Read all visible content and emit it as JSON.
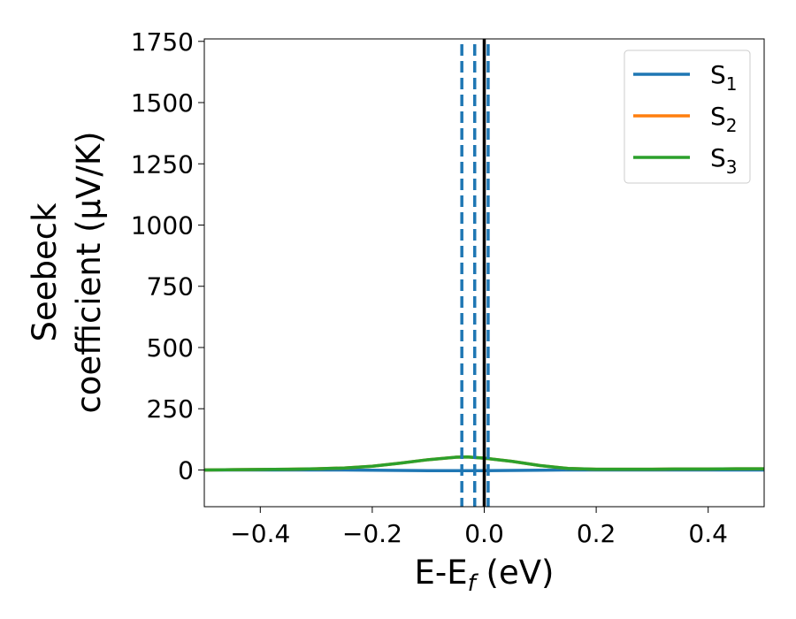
{
  "chart_data": {
    "type": "line",
    "ylabel": [
      "Seebeck",
      "coefficient  (μV/K)"
    ],
    "xlabel": {
      "main": "E-E",
      "sub": "f",
      "rest": " (eV)"
    },
    "x": [
      -0.5,
      -0.45,
      -0.4,
      -0.35,
      -0.3,
      -0.25,
      -0.2,
      -0.15,
      -0.1,
      -0.05,
      -0.03,
      0.0,
      0.05,
      0.1,
      0.15,
      0.2,
      0.25,
      0.3,
      0.35,
      0.4,
      0.45,
      0.5
    ],
    "series": [
      {
        "name": "S",
        "sub": "1",
        "color": "#1f77b4",
        "values": [
          0,
          0,
          0,
          0,
          0,
          0,
          -1,
          -2,
          -3,
          -3,
          -3,
          -3,
          -2,
          -1,
          0,
          0,
          0,
          0,
          0,
          0,
          0,
          0
        ]
      },
      {
        "name": "S",
        "sub": "2",
        "color": "#ff7f0e",
        "values": [
          0,
          1,
          2,
          3,
          5,
          8,
          15,
          28,
          42,
          52,
          53,
          48,
          35,
          18,
          6,
          3,
          3,
          3,
          4,
          4,
          5,
          5
        ]
      },
      {
        "name": "S",
        "sub": "3",
        "color": "#2ca02c",
        "values": [
          0,
          1,
          2,
          3,
          5,
          8,
          15,
          28,
          42,
          52,
          53,
          48,
          35,
          18,
          6,
          3,
          3,
          3,
          4,
          4,
          5,
          5
        ]
      }
    ],
    "vlines": [
      -0.04,
      -0.017,
      0.007
    ],
    "vline_color": "#1f77b4",
    "zero_line": 0.0,
    "xlim": [
      -0.5,
      0.5
    ],
    "ylim": [
      -150,
      1760
    ],
    "xticks": [
      {
        "value": -0.4,
        "label": "−0.4"
      },
      {
        "value": -0.2,
        "label": "−0.2"
      },
      {
        "value": 0.0,
        "label": "0.0"
      },
      {
        "value": 0.2,
        "label": "0.2"
      },
      {
        "value": 0.4,
        "label": "0.4"
      }
    ],
    "yticks": [
      0,
      250,
      500,
      750,
      1000,
      1250,
      1500,
      1750
    ],
    "legend": "upper right"
  }
}
